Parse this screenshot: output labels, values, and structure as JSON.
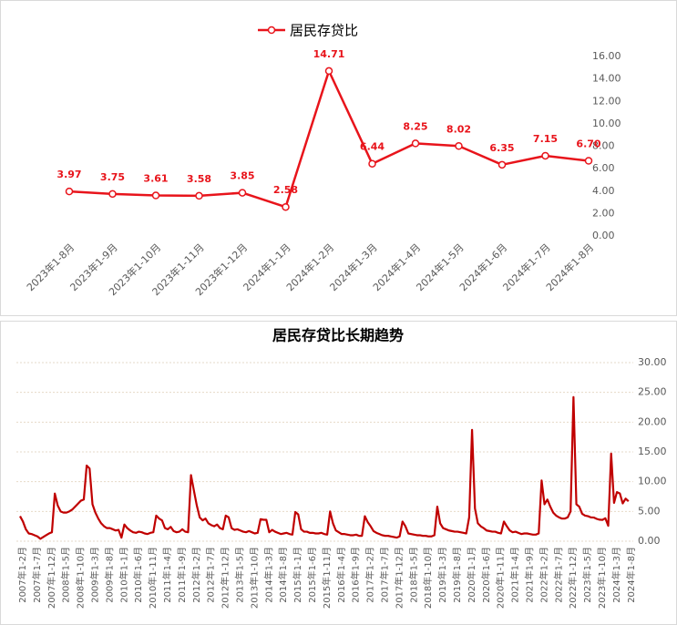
{
  "chart_data": [
    {
      "type": "line",
      "categories": [
        "2023年1-8月",
        "2023年1-9月",
        "2023年1-10月",
        "2023年1-11月",
        "2023年1-12月",
        "2024年1-1月",
        "2024年1-2月",
        "2024年1-3月",
        "2024年1-4月",
        "2024年1-5月",
        "2024年1-6月",
        "2024年1-7月",
        "2024年1-8月"
      ],
      "series": [
        {
          "name": "居民存贷比",
          "color": "#e8141b",
          "values": [
            3.97,
            3.75,
            3.61,
            3.58,
            3.85,
            2.58,
            14.71,
            6.44,
            8.25,
            8.02,
            6.35,
            7.15,
            6.7
          ],
          "value_labels": [
            "3.97",
            "3.75",
            "3.61",
            "3.58",
            "3.85",
            "2.58",
            "14.71",
            "6.44",
            "8.25",
            "8.02",
            "6.35",
            "7.15",
            "6.70"
          ]
        }
      ],
      "ylim": [
        0,
        16
      ],
      "yticks": [
        {
          "value": 0,
          "label": "0.00"
        },
        {
          "value": 2,
          "label": "2.00"
        },
        {
          "value": 4,
          "label": "4.00"
        },
        {
          "value": 6,
          "label": "6.00"
        },
        {
          "value": 8,
          "label": "8.00"
        },
        {
          "value": 10,
          "label": "10.00"
        },
        {
          "value": 12,
          "label": "12.00"
        },
        {
          "value": 14,
          "label": "14.00"
        },
        {
          "value": 16,
          "label": "16.00"
        }
      ],
      "grid": false,
      "legend": "top"
    },
    {
      "type": "line",
      "title": "居民存贷比长期趋势",
      "color": "#c00000",
      "categories": [
        "2007年1-2月",
        null,
        null,
        null,
        null,
        "2007年1-7月",
        null,
        null,
        null,
        null,
        "2007年1-12月",
        null,
        null,
        null,
        null,
        "2008年1-5月",
        null,
        null,
        null,
        null,
        "2008年1-10月",
        null,
        null,
        null,
        null,
        "2009年1-3月",
        null,
        null,
        null,
        null,
        "2009年1-8月",
        null,
        null,
        null,
        null,
        "2010年1-1月",
        null,
        null,
        null,
        null,
        "2010年1-6月",
        null,
        null,
        null,
        null,
        "2010年1-11月",
        null,
        null,
        null,
        null,
        "2011年1-4月",
        null,
        null,
        null,
        null,
        "2011年1-9月",
        null,
        null,
        null,
        null,
        "2012年1-2月",
        null,
        null,
        null,
        null,
        "2012年1-7月",
        null,
        null,
        null,
        null,
        "2012年1-12月",
        null,
        null,
        null,
        null,
        "2013年1-5月",
        null,
        null,
        null,
        null,
        "2013年1-10月",
        null,
        null,
        null,
        null,
        "2014年1-3月",
        null,
        null,
        null,
        null,
        "2014年1-8月",
        null,
        null,
        null,
        null,
        "2015年1-1月",
        null,
        null,
        null,
        null,
        "2015年1-6月",
        null,
        null,
        null,
        null,
        "2015年1-11月",
        null,
        null,
        null,
        null,
        "2016年1-4月",
        null,
        null,
        null,
        null,
        "2016年1-9月",
        null,
        null,
        null,
        null,
        "2017年1-2月",
        null,
        null,
        null,
        null,
        "2017年1-7月",
        null,
        null,
        null,
        null,
        "2017年1-12月",
        null,
        null,
        null,
        null,
        "2018年1-5月",
        null,
        null,
        null,
        null,
        "2018年1-10月",
        null,
        null,
        null,
        null,
        "2019年1-3月",
        null,
        null,
        null,
        null,
        "2019年1-8月",
        null,
        null,
        null,
        null,
        "2020年1-1月",
        null,
        null,
        null,
        null,
        "2020年1-6月",
        null,
        null,
        null,
        null,
        "2020年1-11月",
        null,
        null,
        null,
        null,
        "2021年1-4月",
        null,
        null,
        null,
        null,
        "2021年1-9月",
        null,
        null,
        null,
        null,
        "2022年1-2月",
        null,
        null,
        null,
        null,
        "2022年1-7月",
        null,
        null,
        null,
        null,
        "2022年1-12月",
        null,
        null,
        null,
        null,
        "2023年1-5月",
        null,
        null,
        null,
        null,
        "2023年1-10月",
        null,
        null,
        null,
        null,
        "2024年1-3月",
        null,
        null,
        null,
        null,
        "2024年1-8月"
      ],
      "values": [
        4.2,
        3.3,
        2.0,
        1.3,
        1.2,
        1.0,
        0.8,
        0.4,
        0.7,
        1.0,
        1.3,
        1.5,
        8.0,
        6.0,
        5.0,
        4.8,
        4.8,
        5.0,
        5.3,
        5.8,
        6.3,
        6.8,
        7.0,
        12.7,
        12.2,
        6.2,
        4.8,
        3.8,
        3.0,
        2.5,
        2.2,
        2.2,
        2.0,
        1.8,
        1.9,
        0.6,
        2.8,
        2.2,
        1.8,
        1.5,
        1.4,
        1.6,
        1.5,
        1.3,
        1.2,
        1.4,
        1.5,
        4.3,
        3.8,
        3.5,
        2.2,
        2.0,
        2.4,
        1.7,
        1.5,
        1.6,
        2.0,
        1.6,
        1.5,
        11.1,
        8.5,
        6.0,
        4.0,
        3.5,
        3.8,
        3.0,
        2.7,
        2.5,
        2.8,
        2.2,
        2.0,
        4.3,
        4.0,
        2.2,
        1.9,
        2.0,
        1.8,
        1.6,
        1.5,
        1.7,
        1.5,
        1.3,
        1.4,
        3.7,
        3.6,
        3.6,
        1.5,
        1.9,
        1.6,
        1.4,
        1.2,
        1.3,
        1.4,
        1.2,
        1.1,
        4.9,
        4.5,
        2.0,
        1.6,
        1.6,
        1.4,
        1.4,
        1.3,
        1.3,
        1.4,
        1.2,
        1.1,
        5.0,
        3.0,
        1.8,
        1.5,
        1.2,
        1.2,
        1.1,
        1.0,
        1.0,
        1.1,
        0.9,
        0.9,
        4.2,
        3.2,
        2.5,
        1.7,
        1.4,
        1.2,
        1.0,
        0.9,
        0.9,
        0.8,
        0.7,
        0.6,
        0.8,
        3.3,
        2.5,
        1.3,
        1.2,
        1.1,
        1.0,
        1.0,
        0.9,
        0.9,
        0.8,
        0.8,
        1.0,
        5.8,
        3.0,
        2.2,
        2.0,
        1.8,
        1.7,
        1.6,
        1.6,
        1.5,
        1.4,
        1.3,
        4.0,
        18.7,
        5.5,
        3.0,
        2.5,
        2.2,
        1.8,
        1.7,
        1.6,
        1.6,
        1.4,
        1.3,
        3.3,
        2.5,
        1.8,
        1.5,
        1.6,
        1.4,
        1.2,
        1.3,
        1.3,
        1.2,
        1.1,
        1.1,
        1.3,
        10.2,
        6.2,
        7.0,
        5.8,
        4.8,
        4.3,
        4.0,
        3.8,
        3.8,
        4.0,
        5.0,
        24.2,
        6.2,
        5.8,
        4.6,
        4.3,
        4.2,
        4.0,
        3.97,
        3.75,
        3.61,
        3.58,
        3.85,
        2.58,
        14.71,
        6.44,
        8.25,
        8.02,
        6.35,
        7.15,
        6.7
      ],
      "ylim": [
        0,
        30
      ],
      "yticks": [
        {
          "value": 0,
          "label": "0.00"
        },
        {
          "value": 5,
          "label": "5.00"
        },
        {
          "value": 10,
          "label": "10.00"
        },
        {
          "value": 15,
          "label": "15.00"
        },
        {
          "value": 20,
          "label": "20.00"
        },
        {
          "value": 25,
          "label": "25.00"
        },
        {
          "value": 30,
          "label": "30.00"
        }
      ],
      "grid": true
    }
  ]
}
